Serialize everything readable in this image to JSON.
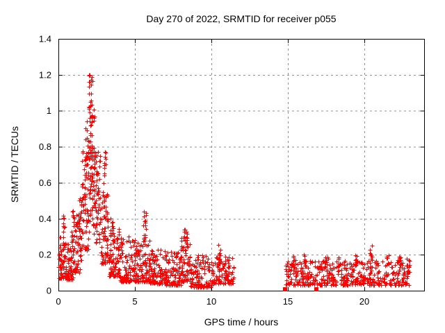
{
  "chart_data": {
    "type": "scatter",
    "title": "Day 270 of 2022, SRMTID for receiver p055",
    "xlabel": "GPS time / hours",
    "ylabel": "SRMTID / TECUs",
    "series_name": "SRMTID",
    "xlim": [
      0,
      23.91
    ],
    "ylim": [
      0,
      1.4
    ],
    "xticks": [
      {
        "v": 0,
        "label": "0"
      },
      {
        "v": 5,
        "label": "5"
      },
      {
        "v": 10,
        "label": "10"
      },
      {
        "v": 15,
        "label": "15"
      },
      {
        "v": 20,
        "label": "20"
      }
    ],
    "yticks": [
      {
        "v": 0,
        "label": "0"
      },
      {
        "v": 0.2,
        "label": "0.2"
      },
      {
        "v": 0.4,
        "label": "0.4"
      },
      {
        "v": 0.6,
        "label": "0.6"
      },
      {
        "v": 0.8,
        "label": "0.8"
      },
      {
        "v": 1,
        "label": "1"
      },
      {
        "v": 1.2,
        "label": "1.2"
      },
      {
        "v": 1.4,
        "label": "1.4"
      }
    ],
    "grid": true,
    "legend": "none",
    "marker": {
      "shape": "plus",
      "color": "#ff0000",
      "size": 7
    },
    "grid_color": "#909090",
    "axis_color": "#000000",
    "background": "#ffffff",
    "features": {
      "peak_value_tecus": 1.21,
      "peak_time_hours": 2.1,
      "data_gap_hours": [
        11.45,
        14.78
      ],
      "last_sample_hour": 22.95
    },
    "zero_markers": {
      "shape": "filled-square",
      "color": "#ff0000",
      "x": [
        14.84,
        16.86
      ],
      "y": [
        0,
        0
      ]
    },
    "encoding_note": "Dense scatter; clusters[] give the time range, point count, value range and low-bias exponent read from the plot; points are regenerated deterministically from seed.",
    "seed": 42,
    "clusters": [
      {
        "x0": 0.02,
        "x1": 0.55,
        "n": 70,
        "y0": 0.07,
        "y1": 0.3,
        "p": 1.8
      },
      {
        "x0": 0.28,
        "x1": 0.4,
        "n": 8,
        "y0": 0.3,
        "y1": 0.47,
        "p": 1
      },
      {
        "x0": 0.55,
        "x1": 1.05,
        "n": 55,
        "y0": 0.06,
        "y1": 0.28,
        "p": 1.8
      },
      {
        "x0": 0.85,
        "x1": 1.05,
        "n": 14,
        "y0": 0.25,
        "y1": 0.45,
        "p": 1
      },
      {
        "x0": 1.05,
        "x1": 1.55,
        "n": 60,
        "y0": 0.1,
        "y1": 0.44,
        "p": 1.5
      },
      {
        "x0": 1.35,
        "x1": 1.52,
        "n": 10,
        "y0": 0.4,
        "y1": 0.56,
        "p": 1
      },
      {
        "x0": 1.55,
        "x1": 1.95,
        "n": 65,
        "y0": 0.22,
        "y1": 0.78,
        "p": 1.2
      },
      {
        "x0": 1.75,
        "x1": 1.92,
        "n": 12,
        "y0": 0.7,
        "y1": 0.97,
        "p": 1
      },
      {
        "x0": 1.95,
        "x1": 2.35,
        "n": 85,
        "y0": 0.3,
        "y1": 1.05,
        "p": 1
      },
      {
        "x0": 2.0,
        "x1": 2.22,
        "n": 24,
        "y0": 0.9,
        "y1": 1.21,
        "p": 1
      },
      {
        "x0": 2.35,
        "x1": 2.75,
        "n": 60,
        "y0": 0.26,
        "y1": 0.78,
        "p": 1.2
      },
      {
        "x0": 2.75,
        "x1": 3.25,
        "n": 70,
        "y0": 0.15,
        "y1": 0.55,
        "p": 1.5
      },
      {
        "x0": 2.95,
        "x1": 3.12,
        "n": 13,
        "y0": 0.5,
        "y1": 0.77,
        "p": 1
      },
      {
        "x0": 3.25,
        "x1": 4.0,
        "n": 90,
        "y0": 0.08,
        "y1": 0.36,
        "p": 1.8
      },
      {
        "x0": 3.4,
        "x1": 3.56,
        "n": 8,
        "y0": 0.3,
        "y1": 0.43,
        "p": 1
      },
      {
        "x0": 4.0,
        "x1": 5.0,
        "n": 110,
        "y0": 0.05,
        "y1": 0.3,
        "p": 2
      },
      {
        "x0": 5.0,
        "x1": 6.0,
        "n": 110,
        "y0": 0.05,
        "y1": 0.28,
        "p": 2
      },
      {
        "x0": 5.55,
        "x1": 5.78,
        "n": 16,
        "y0": 0.24,
        "y1": 0.46,
        "p": 1
      },
      {
        "x0": 6.0,
        "x1": 7.0,
        "n": 95,
        "y0": 0.04,
        "y1": 0.23,
        "p": 2
      },
      {
        "x0": 7.0,
        "x1": 8.0,
        "n": 95,
        "y0": 0.03,
        "y1": 0.22,
        "p": 2
      },
      {
        "x0": 8.0,
        "x1": 8.6,
        "n": 70,
        "y0": 0.05,
        "y1": 0.3,
        "p": 1.6
      },
      {
        "x0": 8.2,
        "x1": 8.45,
        "n": 12,
        "y0": 0.25,
        "y1": 0.36,
        "p": 1
      },
      {
        "x0": 8.6,
        "x1": 10.0,
        "n": 115,
        "y0": 0.02,
        "y1": 0.2,
        "p": 2
      },
      {
        "x0": 10.0,
        "x1": 11.45,
        "n": 115,
        "y0": 0.04,
        "y1": 0.19,
        "p": 1.8
      },
      {
        "x0": 10.45,
        "x1": 10.62,
        "n": 8,
        "y0": 0.16,
        "y1": 0.26,
        "p": 1
      },
      {
        "x0": 14.78,
        "x1": 22.95,
        "n": 480,
        "y0": 0.03,
        "y1": 0.17,
        "p": 1.8
      },
      {
        "x0": 15.25,
        "x1": 15.42,
        "n": 8,
        "y0": 0.13,
        "y1": 0.2,
        "p": 1
      },
      {
        "x0": 16.05,
        "x1": 16.22,
        "n": 8,
        "y0": 0.13,
        "y1": 0.2,
        "p": 1
      },
      {
        "x0": 17.45,
        "x1": 17.62,
        "n": 8,
        "y0": 0.14,
        "y1": 0.22,
        "p": 1
      },
      {
        "x0": 18.25,
        "x1": 18.42,
        "n": 8,
        "y0": 0.13,
        "y1": 0.2,
        "p": 1
      },
      {
        "x0": 19.35,
        "x1": 19.52,
        "n": 8,
        "y0": 0.14,
        "y1": 0.22,
        "p": 1
      },
      {
        "x0": 20.35,
        "x1": 20.52,
        "n": 10,
        "y0": 0.15,
        "y1": 0.26,
        "p": 1
      },
      {
        "x0": 21.45,
        "x1": 21.62,
        "n": 8,
        "y0": 0.13,
        "y1": 0.2,
        "p": 1
      },
      {
        "x0": 22.25,
        "x1": 22.42,
        "n": 8,
        "y0": 0.13,
        "y1": 0.21,
        "p": 1
      },
      {
        "x0": 22.7,
        "x1": 22.95,
        "n": 12,
        "y0": 0.08,
        "y1": 0.18,
        "p": 1
      }
    ]
  }
}
